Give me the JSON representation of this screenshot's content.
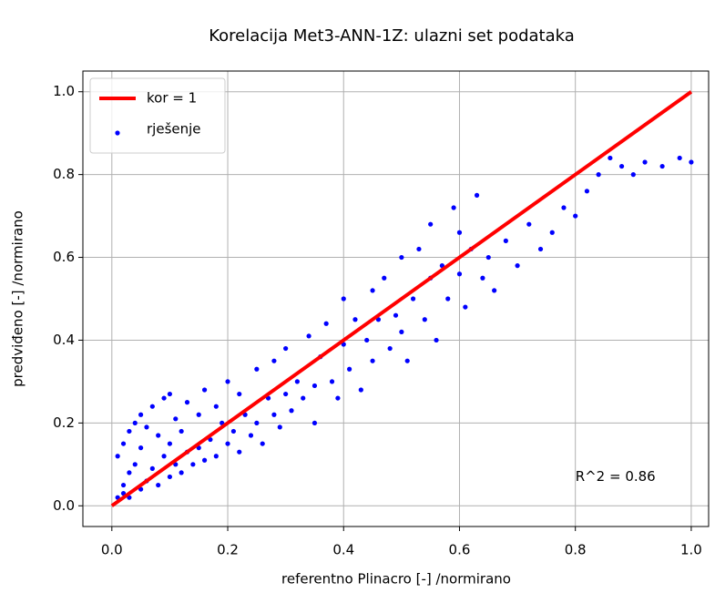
{
  "chart_data": {
    "type": "scatter",
    "title": "Korelacija Met3-ANN-1Z: ulazni set podataka",
    "xlabel": "referentno Plinacro [-] /normirano",
    "ylabel": "predviđeno [-] /normirano",
    "xlim": [
      -0.05,
      1.03
    ],
    "ylim": [
      -0.05,
      1.05
    ],
    "xticks": [
      {
        "value": 0,
        "label": "0.0"
      },
      0.2,
      0.4,
      0.6,
      0.8,
      {
        "value": 1,
        "label": "1.0"
      }
    ],
    "yticks": [
      {
        "value": 0,
        "label": "0.0"
      },
      0.2,
      0.4,
      0.6,
      0.8,
      {
        "value": 1,
        "label": "1.0"
      }
    ],
    "grid": true,
    "legend": "upper left",
    "annotations": [
      {
        "text": "R^2 = 0.86",
        "x": 0.8,
        "y": 0.07
      }
    ],
    "series": [
      {
        "name": "kor = 1",
        "type": "line",
        "color": "#ff0000",
        "x": [
          0,
          1
        ],
        "values": [
          0,
          1
        ]
      },
      {
        "name": "rješenje",
        "type": "scatter",
        "color": "#0000ff",
        "x": [
          0.01,
          0.01,
          0.02,
          0.02,
          0.02,
          0.03,
          0.03,
          0.03,
          0.04,
          0.04,
          0.05,
          0.05,
          0.05,
          0.06,
          0.06,
          0.07,
          0.07,
          0.08,
          0.08,
          0.09,
          0.09,
          0.1,
          0.1,
          0.1,
          0.11,
          0.11,
          0.12,
          0.12,
          0.13,
          0.13,
          0.14,
          0.15,
          0.15,
          0.16,
          0.16,
          0.17,
          0.18,
          0.18,
          0.19,
          0.2,
          0.2,
          0.21,
          0.22,
          0.22,
          0.23,
          0.24,
          0.25,
          0.25,
          0.26,
          0.27,
          0.28,
          0.28,
          0.29,
          0.3,
          0.3,
          0.31,
          0.32,
          0.33,
          0.34,
          0.35,
          0.35,
          0.36,
          0.37,
          0.38,
          0.39,
          0.4,
          0.4,
          0.41,
          0.42,
          0.43,
          0.44,
          0.45,
          0.45,
          0.46,
          0.47,
          0.48,
          0.49,
          0.5,
          0.5,
          0.51,
          0.52,
          0.53,
          0.54,
          0.55,
          0.55,
          0.56,
          0.57,
          0.58,
          0.59,
          0.6,
          0.6,
          0.61,
          0.62,
          0.63,
          0.64,
          0.65,
          0.66,
          0.68,
          0.7,
          0.72,
          0.74,
          0.76,
          0.78,
          0.8,
          0.82,
          0.84,
          0.86,
          0.88,
          0.9,
          0.92,
          0.95,
          0.98,
          1.0
        ],
        "values": [
          0.02,
          0.12,
          0.05,
          0.15,
          0.03,
          0.08,
          0.18,
          0.02,
          0.1,
          0.2,
          0.04,
          0.14,
          0.22,
          0.06,
          0.19,
          0.09,
          0.24,
          0.05,
          0.17,
          0.12,
          0.26,
          0.07,
          0.15,
          0.27,
          0.1,
          0.21,
          0.08,
          0.18,
          0.13,
          0.25,
          0.1,
          0.14,
          0.22,
          0.11,
          0.28,
          0.16,
          0.12,
          0.24,
          0.2,
          0.15,
          0.3,
          0.18,
          0.13,
          0.27,
          0.22,
          0.17,
          0.2,
          0.33,
          0.15,
          0.26,
          0.22,
          0.35,
          0.19,
          0.27,
          0.38,
          0.23,
          0.3,
          0.26,
          0.41,
          0.29,
          0.2,
          0.36,
          0.44,
          0.3,
          0.26,
          0.39,
          0.5,
          0.33,
          0.45,
          0.28,
          0.4,
          0.52,
          0.35,
          0.45,
          0.55,
          0.38,
          0.46,
          0.42,
          0.6,
          0.35,
          0.5,
          0.62,
          0.45,
          0.55,
          0.68,
          0.4,
          0.58,
          0.5,
          0.72,
          0.56,
          0.66,
          0.48,
          0.62,
          0.75,
          0.55,
          0.6,
          0.52,
          0.64,
          0.58,
          0.68,
          0.62,
          0.66,
          0.72,
          0.7,
          0.76,
          0.8,
          0.84,
          0.82,
          0.8,
          0.83,
          0.82,
          0.84,
          0.83
        ]
      }
    ]
  }
}
